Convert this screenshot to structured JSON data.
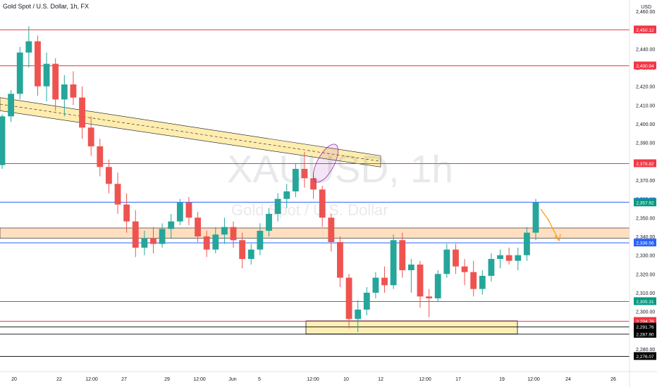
{
  "header": {
    "title": "Gold Spot / U.S. Dollar, 1h, FX"
  },
  "watermark": {
    "symbol": "XAUUSD, 1h",
    "name": "Gold Spot / U.S. Dollar"
  },
  "price_axis": {
    "unit": "USD"
  },
  "chart_data": {
    "type": "candlestick",
    "title": "Gold Spot / U.S. Dollar, 1h, FX",
    "ylim": [
      2271,
      2466
    ],
    "grid": false,
    "x_tick_labels": [
      "20",
      "22",
      "12:00",
      "27",
      "29",
      "12:00",
      "Jun",
      "5",
      "12:00",
      "10",
      "12",
      "12:00",
      "17",
      "19",
      "12:00",
      "24",
      "26"
    ],
    "y_tick_labels": [
      "2,460.00",
      "2,450.00",
      "2,440.00",
      "2,430.00",
      "2,420.00",
      "2,410.00",
      "2,400.00",
      "2,390.00",
      "2,380.00",
      "2,370.00",
      "2,360.00",
      "2,350.00",
      "2,340.00",
      "2,330.00",
      "2,320.00",
      "2,310.00",
      "2,300.00",
      "2,290.00",
      "2,280.00"
    ],
    "colors": {
      "up": "#26a69a",
      "down": "#ef5350",
      "resistance": "#f23645",
      "support": "#2962ff",
      "green_level": "#089981",
      "zone": "#ffe17a",
      "orange_zone": "#ffb774",
      "arrow": "#ff9800"
    },
    "horizontal_levels": [
      {
        "price": 2450.12,
        "label": "2,450.12",
        "color": "#f23645"
      },
      {
        "price": 2430.94,
        "label": "2,430.94",
        "color": "#f23645"
      },
      {
        "price": 2378.82,
        "label": "2,378.82",
        "color": "#f23645"
      },
      {
        "price": 2358.23,
        "label": "2,358.23",
        "color": "#2962ff"
      },
      {
        "price": 2336.56,
        "label": "2,336.56",
        "color": "#2962ff"
      },
      {
        "price": 2305.31,
        "label": "2,305.31",
        "color": "#089981"
      },
      {
        "price": 2294.76,
        "label": "2,294.76",
        "color": "#f23645"
      },
      {
        "price": 2291.76,
        "label": "2,291.76",
        "color": "#000000"
      },
      {
        "price": 2287.9,
        "label": "2,287.90",
        "color": "#000000"
      },
      {
        "price": 2276.07,
        "label": "2,276.07",
        "color": "#000000"
      }
    ],
    "current_price": {
      "price": 2357.92,
      "label": "2,357.92",
      "color": "#089981"
    },
    "zones": [
      {
        "kind": "orange",
        "from": 2339,
        "to": 2344.5
      },
      {
        "kind": "yellow",
        "from": 2288,
        "to": 2295
      }
    ],
    "trend_channel": {
      "start_price_top": 2414,
      "start_price_bottom": 2407,
      "end_price_top": 2383,
      "end_price_bottom": 2377
    },
    "series": [
      {
        "values": [
          [
            2378,
            2405,
            2376,
            2404
          ],
          [
            2404,
            2418,
            2401,
            2416
          ],
          [
            2416,
            2441,
            2413,
            2438
          ],
          [
            2438,
            2452,
            2430,
            2444
          ],
          [
            2444,
            2447,
            2415,
            2420
          ],
          [
            2420,
            2438,
            2412,
            2432
          ],
          [
            2432,
            2435,
            2407,
            2413
          ],
          [
            2413,
            2426,
            2404,
            2421
          ],
          [
            2421,
            2428,
            2410,
            2414
          ],
          [
            2414,
            2420,
            2392,
            2398
          ],
          [
            2398,
            2404,
            2383,
            2388
          ],
          [
            2388,
            2392,
            2372,
            2377
          ],
          [
            2377,
            2381,
            2363,
            2368
          ],
          [
            2368,
            2374,
            2352,
            2357
          ],
          [
            2357,
            2363,
            2342,
            2348
          ],
          [
            2348,
            2354,
            2329,
            2334
          ],
          [
            2334,
            2343,
            2330,
            2339
          ],
          [
            2339,
            2345,
            2331,
            2336
          ],
          [
            2336,
            2347,
            2334,
            2344
          ],
          [
            2344,
            2352,
            2339,
            2348
          ],
          [
            2348,
            2360,
            2346,
            2358
          ],
          [
            2358,
            2361,
            2346,
            2350
          ],
          [
            2350,
            2353,
            2337,
            2340
          ],
          [
            2340,
            2343,
            2329,
            2333
          ],
          [
            2333,
            2345,
            2331,
            2341
          ],
          [
            2341,
            2350,
            2336,
            2345
          ],
          [
            2345,
            2348,
            2334,
            2338
          ],
          [
            2338,
            2342,
            2323,
            2328
          ],
          [
            2328,
            2336,
            2325,
            2333
          ],
          [
            2333,
            2347,
            2330,
            2343
          ],
          [
            2343,
            2355,
            2340,
            2352
          ],
          [
            2352,
            2363,
            2348,
            2360
          ],
          [
            2360,
            2368,
            2355,
            2364
          ],
          [
            2364,
            2379,
            2361,
            2376
          ],
          [
            2376,
            2385,
            2366,
            2371
          ],
          [
            2371,
            2374,
            2360,
            2365
          ],
          [
            2365,
            2367,
            2345,
            2350
          ],
          [
            2350,
            2352,
            2332,
            2337
          ],
          [
            2337,
            2340,
            2313,
            2318
          ],
          [
            2318,
            2320,
            2291,
            2296
          ],
          [
            2296,
            2306,
            2289,
            2301
          ],
          [
            2301,
            2313,
            2298,
            2310
          ],
          [
            2310,
            2321,
            2307,
            2318
          ],
          [
            2318,
            2324,
            2310,
            2314
          ],
          [
            2314,
            2341,
            2312,
            2338
          ],
          [
            2338,
            2342,
            2318,
            2322
          ],
          [
            2322,
            2328,
            2310,
            2325
          ],
          [
            2325,
            2327,
            2302,
            2308
          ],
          [
            2308,
            2312,
            2297,
            2307
          ],
          [
            2307,
            2322,
            2305,
            2320
          ],
          [
            2320,
            2336,
            2318,
            2333
          ],
          [
            2333,
            2336,
            2320,
            2324
          ],
          [
            2324,
            2328,
            2314,
            2321
          ],
          [
            2321,
            2327,
            2308,
            2312
          ],
          [
            2312,
            2322,
            2309,
            2319
          ],
          [
            2319,
            2331,
            2316,
            2328
          ],
          [
            2328,
            2333,
            2323,
            2330
          ],
          [
            2330,
            2334,
            2325,
            2327
          ],
          [
            2327,
            2334,
            2322,
            2330
          ],
          [
            2330,
            2345,
            2327,
            2342
          ],
          [
            2342,
            2360,
            2338,
            2358
          ]
        ]
      }
    ]
  }
}
